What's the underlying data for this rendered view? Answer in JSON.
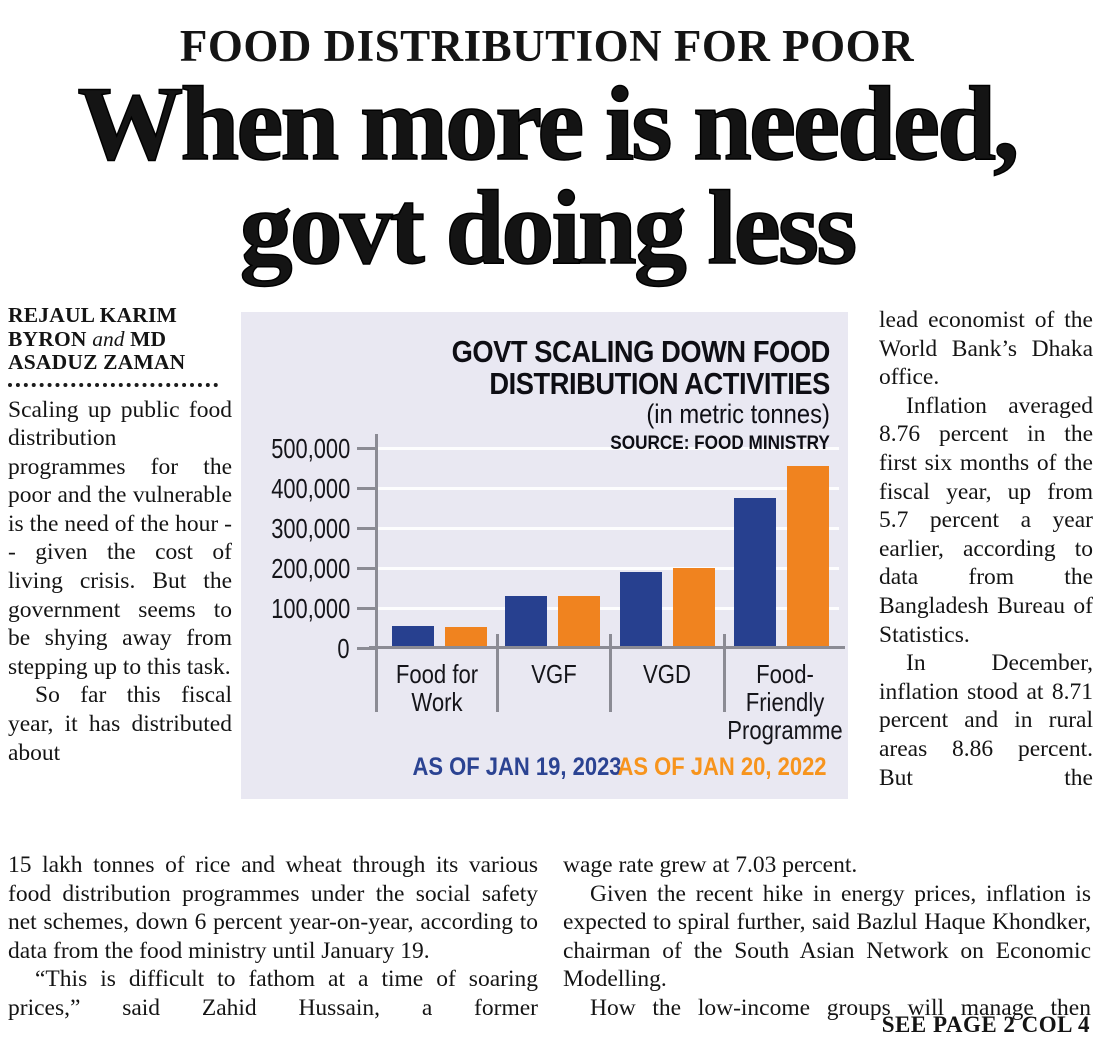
{
  "kicker": "FOOD DISTRIBUTION FOR POOR",
  "headline": {
    "line1": "When more is needed,",
    "line2": "govt doing less"
  },
  "byline": {
    "line1": "REJAUL KARIM",
    "line2_name1": "BYRON",
    "line2_and": "and",
    "line2_name2": "MD",
    "line3": "ASADUZ ZAMAN"
  },
  "article": {
    "left_col": [
      "Scaling up public food distribution programmes for the poor and the vulnerable is the need of the hour -- given the cost of living crisis. But the government seems to be shying away from stepping up to this task.",
      "So far this fiscal year, it has distributed about"
    ],
    "bottom_left": [
      "15 lakh tonnes of rice and wheat through its various food distribution programmes under the social safety net schemes, down 6 percent year-on-year, according to data from the food ministry until January 19.",
      "“This is difficult to fathom at a time of soaring prices,” said Zahid Hussain, a former"
    ],
    "right_col": [
      "lead economist of the World Bank’s Dhaka office.",
      "Inflation averaged 8.76 percent in the first six months of the fiscal year, up from 5.7 percent a year earlier, according to data from the Bangladesh Bureau of Statistics.",
      "In December, inflation stood at 8.71 percent and in rural areas 8.86 percent. But the"
    ],
    "bottom_right": [
      "wage rate grew at 7.03 percent.",
      "Given the recent hike in energy prices, inflation is expected to spiral further, said Bazlul Haque Khondker, chairman of the South Asian Network on Economic Modelling.",
      "How the low-income groups will manage then"
    ],
    "jump_line": "SEE PAGE 2 COL 4"
  },
  "chart_data": {
    "type": "bar",
    "title_line1": "GOVT SCALING DOWN FOOD",
    "title_line2": "DISTRIBUTION ACTIVITIES",
    "subtitle": "(in metric tonnes)",
    "source": "SOURCE: FOOD MINISTRY",
    "categories": [
      "Food for\nWork",
      "VGF",
      "VGD",
      "Food-\nFriendly\nProgramme"
    ],
    "series": [
      {
        "name": "AS OF JAN 19, 2023",
        "color": "#27408f",
        "legend_color": "#2b4392",
        "values": [
          50000,
          125000,
          185000,
          370000
        ]
      },
      {
        "name": "AS OF JAN 20, 2022",
        "color": "#f0831f",
        "legend_color": "#f7941d",
        "values": [
          48000,
          125000,
          195000,
          450000
        ]
      }
    ],
    "ylabel_ticks": [
      "500,000",
      "400,000",
      "300,000",
      "200,000",
      "100,000",
      "0"
    ],
    "ylim": [
      0,
      500000
    ],
    "grid": true,
    "legend_position": "bottom",
    "panel_bg": "#e9e8f2"
  }
}
